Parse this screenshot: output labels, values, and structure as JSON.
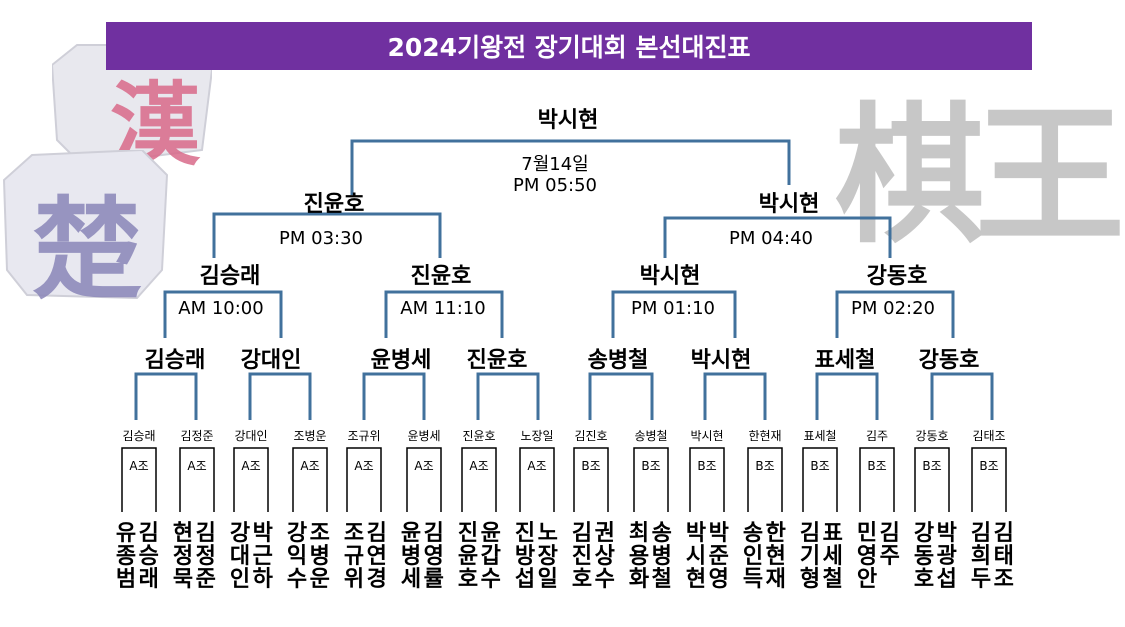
{
  "title": "2024기왕전 장기대회 본선대진표",
  "watermarks": {
    "chinese_piece_han": "漢",
    "chinese_piece_cho": "楚",
    "chinese_right": "棋王"
  },
  "final": {
    "winner": "박시현",
    "date": "7월14일",
    "time": "PM 05:50"
  },
  "semifinals": [
    {
      "winner": "진윤호",
      "time": "PM 03:30"
    },
    {
      "winner": "박시현",
      "time": "PM 04:40"
    }
  ],
  "quarterfinals": [
    {
      "winner": "김승래",
      "time": "AM 10:00"
    },
    {
      "winner": "진윤호",
      "time": "AM 11:10"
    },
    {
      "winner": "박시현",
      "time": "PM 01:10"
    },
    {
      "winner": "강동호",
      "time": "PM 02:20"
    }
  ],
  "round16": [
    "김승래",
    "강대인",
    "윤병세",
    "진윤호",
    "송병철",
    "박시현",
    "표세철",
    "강동호"
  ],
  "group_entries": [
    {
      "name": "김승래",
      "group": "A조"
    },
    {
      "name": "김정준",
      "group": "A조"
    },
    {
      "name": "강대인",
      "group": "A조"
    },
    {
      "name": "조병운",
      "group": "A조"
    },
    {
      "name": "조규위",
      "group": "A조"
    },
    {
      "name": "윤병세",
      "group": "A조"
    },
    {
      "name": "진윤호",
      "group": "A조"
    },
    {
      "name": "노장일",
      "group": "A조"
    },
    {
      "name": "김진호",
      "group": "B조"
    },
    {
      "name": "송병철",
      "group": "B조"
    },
    {
      "name": "박시현",
      "group": "B조"
    },
    {
      "name": "한현재",
      "group": "B조"
    },
    {
      "name": "표세철",
      "group": "B조"
    },
    {
      "name": "김주",
      "group": "B조"
    },
    {
      "name": "강동호",
      "group": "B조"
    },
    {
      "name": "김태조",
      "group": "B조"
    }
  ],
  "bottom_names": [
    "유종범",
    "김승래",
    "현정묵",
    "김정준",
    "강대인",
    "박근하",
    "강익수",
    "조병운",
    "조규위",
    "김연경",
    "윤병세",
    "김영률",
    "진윤호",
    "윤갑수",
    "진방섭",
    "노장일",
    "김진호",
    "권상수",
    "최용화",
    "송병철",
    "박시현",
    "박준영",
    "송인득",
    "한현재",
    "김기형",
    "표세철",
    "민영안",
    "김주",
    "강동호",
    "박광섭",
    "김희두",
    "김태조"
  ]
}
